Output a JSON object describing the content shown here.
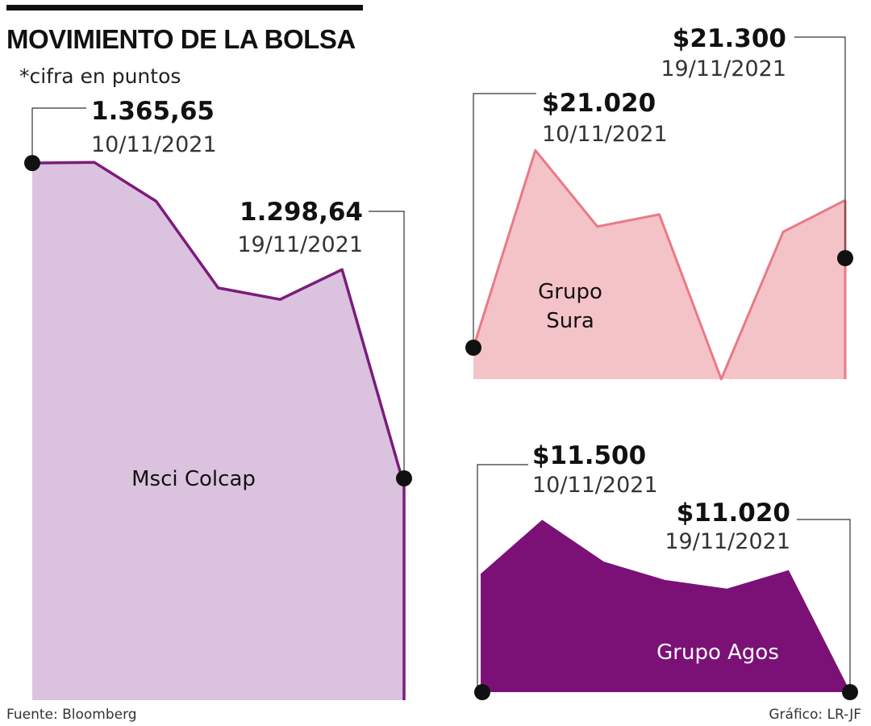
{
  "title": "MOVIMIENTO DE LA BOLSA",
  "subtitle": "*cifra en puntos",
  "source": "Fuente: Bloomberg",
  "credit": "Gráfico: LR-JF",
  "colors": {
    "colcap_fill": "#dbc2de",
    "colcap_line": "#7b1c7a",
    "sura_fill": "#f4c3c8",
    "sura_line": "#e87a86",
    "agos_fill": "#7b1177",
    "agos_line": "#7b1177",
    "marker": "#111111",
    "leader": "#333333"
  },
  "chart_data": [
    {
      "type": "area",
      "name": "Msci Colcap",
      "unit": "puntos",
      "series": [
        {
          "name": "Msci Colcap",
          "x": [
            1,
            2,
            3,
            4,
            5,
            6,
            7
          ],
          "values": [
            1365.65,
            1365.8,
            1357.7,
            1339.7,
            1337.3,
            1343.5,
            1298.64
          ]
        }
      ],
      "ylim": [
        1254,
        1366
      ],
      "first": {
        "label": "1.365,65",
        "date": "10/11/2021"
      },
      "last": {
        "label": "1.298,64",
        "date": "19/11/2021"
      }
    },
    {
      "type": "area",
      "name": "Grupo Sura",
      "series": [
        {
          "name": "Grupo Sura",
          "x": [
            1,
            2,
            3,
            4,
            5,
            6,
            7
          ],
          "values": [
            21020,
            21395,
            21250,
            21273,
            20960,
            21240,
            21300
          ]
        }
      ],
      "ylim": [
        20960,
        21400
      ],
      "first": {
        "label": "$21.020",
        "date": "10/11/2021"
      },
      "last": {
        "label": "$21.300",
        "date": "19/11/2021"
      }
    },
    {
      "type": "area",
      "name": "Grupo Agos",
      "series": [
        {
          "name": "Grupo Agos",
          "x": [
            1,
            2,
            3,
            4,
            5,
            6,
            7
          ],
          "values": [
            11500,
            11720,
            11550,
            11475,
            11440,
            11515,
            11020
          ]
        }
      ],
      "ylim": [
        11020,
        11720
      ],
      "first": {
        "label": "$11.500",
        "date": "10/11/2021"
      },
      "last": {
        "label": "$11.020",
        "date": "19/11/2021"
      }
    }
  ]
}
